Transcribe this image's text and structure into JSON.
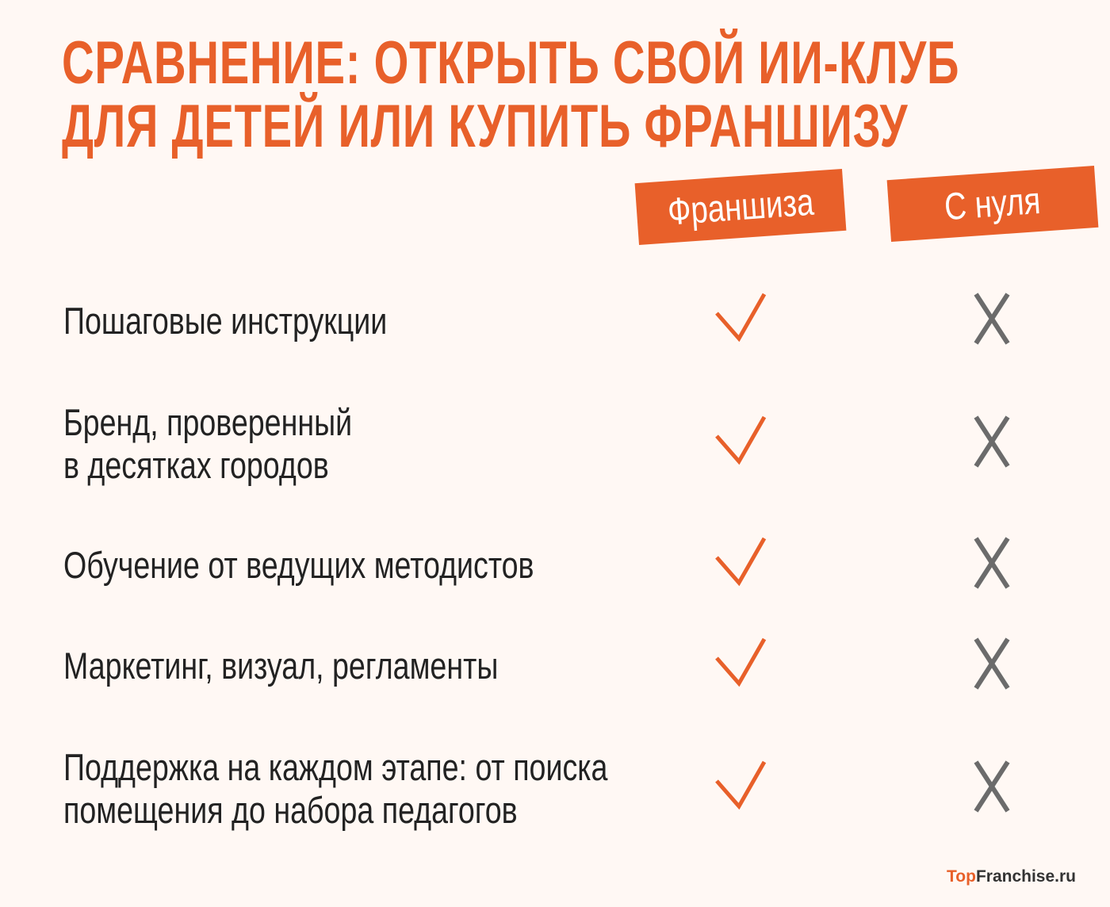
{
  "title": {
    "line1": "СРАВНЕНИЕ: ОТКРЫТЬ СВОЙ ИИ-КЛУБ",
    "line2": "ДЛЯ ДЕТЕЙ ИЛИ КУПИТЬ ФРАНШИЗУ"
  },
  "columns": [
    {
      "label": "Франшиза"
    },
    {
      "label": "С нуля"
    }
  ],
  "rows": [
    {
      "line1": "Пошаговые инструкции",
      "line2": "",
      "franchise": "check",
      "scratch": "cross"
    },
    {
      "line1": "Бренд, проверенный",
      "line2": "в десятках городов",
      "franchise": "check",
      "scratch": "cross"
    },
    {
      "line1": "Обучение от ведущих методистов",
      "line2": "",
      "franchise": "check",
      "scratch": "cross"
    },
    {
      "line1": "Маркетинг, визуал, регламенты",
      "line2": "",
      "franchise": "check",
      "scratch": "cross"
    },
    {
      "line1": "Поддержка на каждом этапе: от поиска",
      "line2": "помещения до набора педагогов",
      "franchise": "check",
      "scratch": "cross"
    }
  ],
  "logo": {
    "part1": "Top",
    "part2": "Franchise.ru"
  },
  "colors": {
    "accent": "#e8602a",
    "cross": "#6b6b6b",
    "background": "#fff8f4"
  }
}
